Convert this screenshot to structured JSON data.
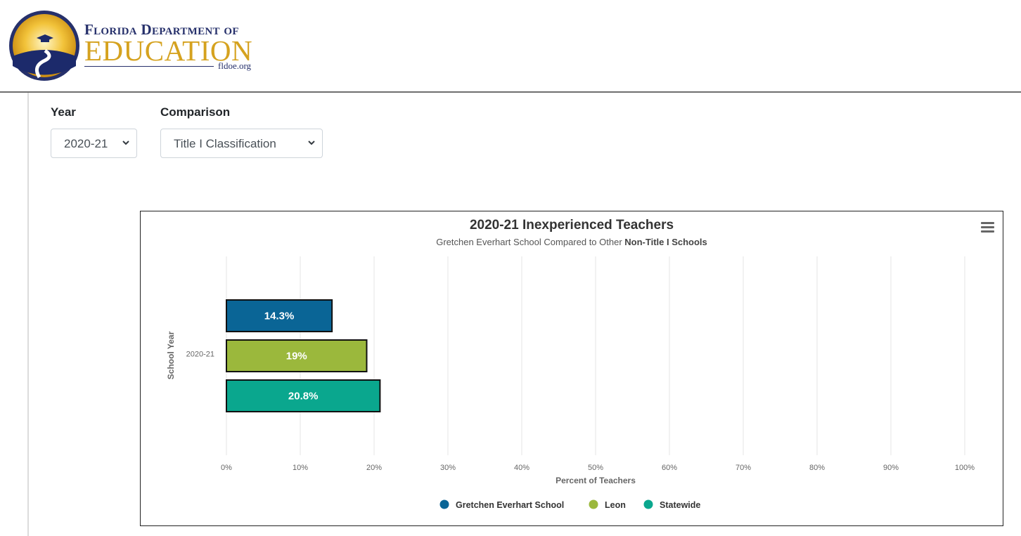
{
  "header": {
    "logo_line1": "Florida Department of",
    "logo_line2": "EDUCATION",
    "logo_url": "fldoe.org"
  },
  "filters": {
    "year_label": "Year",
    "year_value": "2020-21",
    "comparison_label": "Comparison",
    "comparison_value": "Title I Classification"
  },
  "colors": {
    "school": "#0a6596",
    "leon": "#9bb83c",
    "statewide": "#0aa78e",
    "logo_blue": "#26306b",
    "logo_gold": "#d5a21f"
  },
  "chart_data": {
    "type": "bar",
    "orientation": "horizontal",
    "title": "2020-21 Inexperienced Teachers",
    "subtitle_prefix": "Gretchen Everhart School Compared to Other ",
    "subtitle_bold": "Non-Title I Schools",
    "categories": [
      "2020-21"
    ],
    "series": [
      {
        "name": "Gretchen Everhart School",
        "values": [
          14.3
        ],
        "label": "14.3%",
        "color": "#0a6596"
      },
      {
        "name": "Leon",
        "values": [
          19
        ],
        "label": "19%",
        "color": "#9bb83c"
      },
      {
        "name": "Statewide",
        "values": [
          20.8
        ],
        "label": "20.8%",
        "color": "#0aa78e"
      }
    ],
    "xlabel": "Percent of Teachers",
    "ylabel": "School Year",
    "xlim": [
      0,
      100
    ],
    "xticks": [
      "0%",
      "10%",
      "20%",
      "30%",
      "40%",
      "50%",
      "60%",
      "70%",
      "80%",
      "90%",
      "100%"
    ],
    "grid": true,
    "legend": "bottom"
  }
}
